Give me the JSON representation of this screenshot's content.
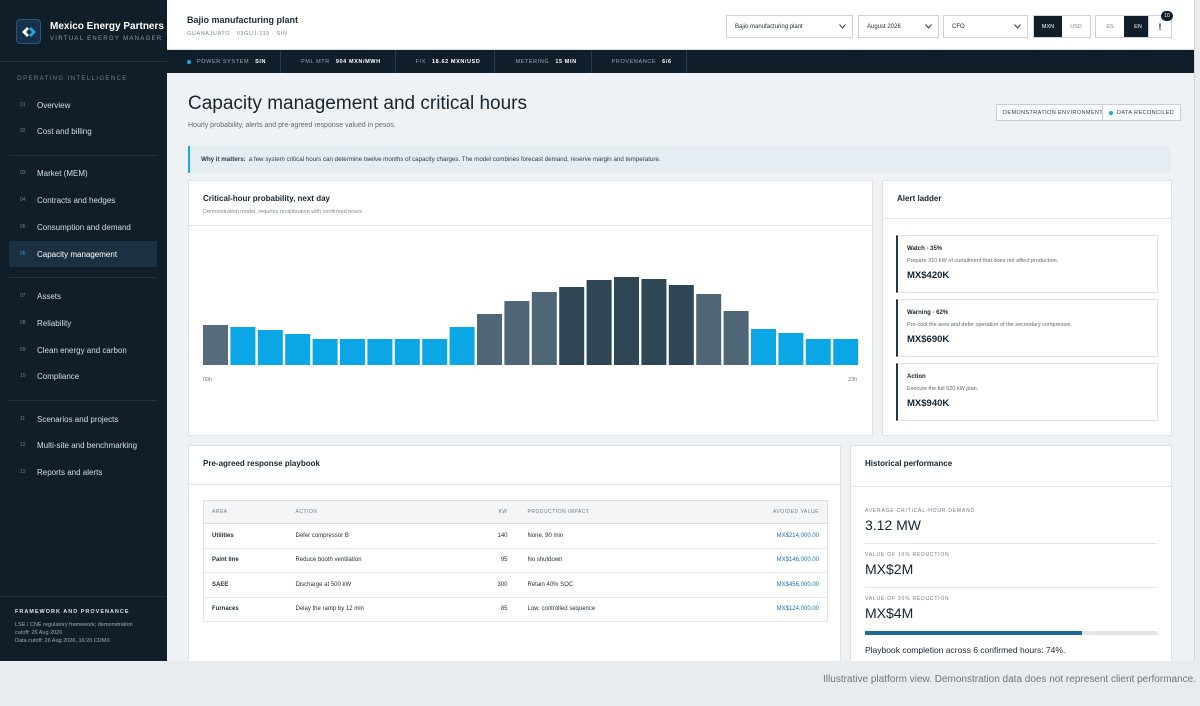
{
  "brand": {
    "name": "Mexico Energy Partners",
    "subtitle": "VIRTUAL ENERGY MANAGER"
  },
  "sidebar": {
    "section_label": "OPERATING INTELLIGENCE",
    "items": [
      {
        "num": "01",
        "label": "Overview"
      },
      {
        "num": "02",
        "label": "Cost and billing"
      },
      {
        "num": "03",
        "label": "Market (MEM)"
      },
      {
        "num": "04",
        "label": "Contracts and hedges"
      },
      {
        "num": "05",
        "label": "Consumption and demand"
      },
      {
        "num": "06",
        "label": "Capacity management",
        "active": true
      },
      {
        "num": "07",
        "label": "Assets"
      },
      {
        "num": "08",
        "label": "Reliability"
      },
      {
        "num": "09",
        "label": "Clean energy and carbon"
      },
      {
        "num": "10",
        "label": "Compliance"
      },
      {
        "num": "11",
        "label": "Scenarios and projects"
      },
      {
        "num": "12",
        "label": "Multi-site and benchmarking"
      },
      {
        "num": "13",
        "label": "Reports and alerts"
      }
    ],
    "provenance": {
      "title": "FRAMEWORK AND PROVENANCE",
      "line1": "LSE / CNE regulatory framework; demonstration",
      "line2": "cutoff: 26 Aug 2026",
      "line3": "Data cutoff: 26 Aug 2026, 16:20 CDMX"
    }
  },
  "header": {
    "site_name": "Bajio manufacturing plant",
    "site_meta": "GUANAJUATO · 03GUJ-115 · SIN",
    "site_select": "Bajio manufacturing plant",
    "period_select": "August 2026",
    "role_select": "CFO",
    "currency": [
      "MXN",
      "USD"
    ],
    "language": [
      "ES",
      "EN"
    ],
    "alerts_label": "!",
    "alerts_count": "10"
  },
  "status_strip": [
    {
      "label": "POWER SYSTEM",
      "value": "SIN"
    },
    {
      "label": "PML MTR",
      "value": "904 MXN/MWH"
    },
    {
      "label": "FIX",
      "value": "18.62 MXN/USD"
    },
    {
      "label": "METERING",
      "value": "15 MIN"
    },
    {
      "label": "PROVENANCE",
      "value": "6/6"
    }
  ],
  "page": {
    "title": "Capacity management and critical hours",
    "subtitle": "Hourly probability, alerts and pre-agreed response valued in pesos.",
    "pill_demo": "DEMONSTRATION ENVIRONMENT",
    "pill_reconciled": "DATA RECONCILED",
    "why_label": "Why it matters:",
    "why_text": "a few system critical hours can determine twelve months of capacity charges. The model combines forecast demand, reserve margin and temperature."
  },
  "probability_card": {
    "title": "Critical-hour probability, next day",
    "subtitle": "Demonstration model, requires recalibration with confirmed hours"
  },
  "chart_data": {
    "type": "bar",
    "categories": [
      "00h",
      "01h",
      "02h",
      "03h",
      "04h",
      "05h",
      "06h",
      "07h",
      "08h",
      "09h",
      "10h",
      "11h",
      "12h",
      "13h",
      "14h",
      "15h",
      "16h",
      "17h",
      "18h",
      "19h",
      "20h",
      "21h",
      "22h",
      "23h"
    ],
    "values": [
      40,
      38,
      35,
      31,
      26,
      26,
      26,
      26,
      26,
      38,
      51,
      64,
      73,
      78,
      85,
      88,
      86,
      80,
      71,
      54,
      36,
      32,
      26,
      26
    ],
    "x_tick_labels": [
      "00h",
      "23h"
    ],
    "ylim": [
      0,
      100
    ],
    "grid": false,
    "legend": "none",
    "colors": {
      "low": "#0ba6e6",
      "elevated": "#4f6676",
      "critical": "#2f4655",
      "base": "#566c7c"
    }
  },
  "alert_ladder": {
    "title": "Alert ladder",
    "items": [
      {
        "level": "Watch · 35%",
        "desc": "Prepare 310 kW of curtailment that does not affect production.",
        "value": "MX$420K"
      },
      {
        "level": "Warning · 62%",
        "desc": "Pre-cool the area and defer operation of the secondary compressor.",
        "value": "MX$690K"
      },
      {
        "level": "Action",
        "desc": "Execute the full 620 kW plan.",
        "value": "MX$940K"
      }
    ]
  },
  "playbook": {
    "title": "Pre-agreed response playbook",
    "columns": [
      "AREA",
      "ACTION",
      "KW",
      "PRODUCTION IMPACT",
      "AVOIDED VALUE"
    ],
    "rows": [
      {
        "area": "Utilities",
        "action": "Defer compressor B",
        "kw": "140",
        "impact": "None, 90 min",
        "value": "MX$214,000.00"
      },
      {
        "area": "Paint line",
        "action": "Reduce booth ventilation",
        "kw": "95",
        "impact": "No shutdown",
        "value": "MX$146,000.00"
      },
      {
        "area": "SAEE",
        "action": "Discharge at 500 kW",
        "kw": "300",
        "impact": "Retain 40% SOC",
        "value": "MX$456,000.00"
      },
      {
        "area": "Furnaces",
        "action": "Delay the ramp by 12 min",
        "kw": "85",
        "impact": "Low, controlled sequence",
        "value": "MX$124,000.00"
      }
    ]
  },
  "historical": {
    "title": "Historical performance",
    "kpis": [
      {
        "label": "AVERAGE CRITICAL-HOUR DEMAND",
        "value": "3.12 MW"
      },
      {
        "label": "VALUE OF 10% REDUCTION",
        "value": "MX$2M"
      },
      {
        "label": "VALUE OF 20% REDUCTION",
        "value": "MX$4M"
      }
    ],
    "completion_fraction": 0.74,
    "completion_text": "Playbook completion across 6 confirmed hours: 74%."
  },
  "footer_note": "Illustrative platform view. Demonstration data does not represent client performance."
}
